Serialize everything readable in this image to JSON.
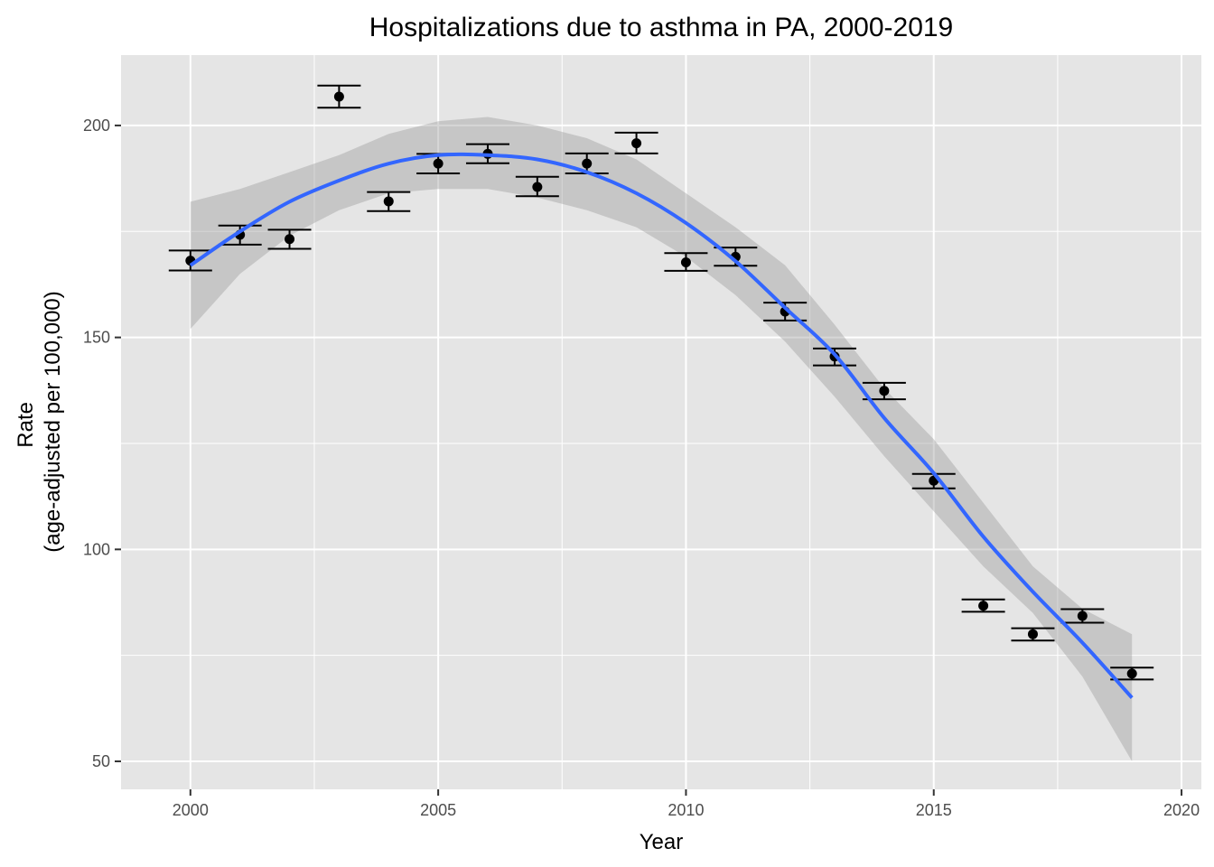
{
  "chart_data": {
    "type": "scatter",
    "title": "Hospitalizations due to asthma in PA, 2000-2019",
    "xlabel": "Year",
    "ylabel_lines": [
      "Rate",
      "(age-adjusted per 100,000)"
    ],
    "xlim": [
      1998.6,
      2020.4
    ],
    "ylim": [
      43.4,
      216.6
    ],
    "x_ticks": [
      2000,
      2005,
      2010,
      2015,
      2020
    ],
    "y_ticks": [
      50,
      100,
      150,
      200
    ],
    "grid": true,
    "legend": "none",
    "colors": {
      "panel_background": "#e5e5e5",
      "grid": "#ffffff",
      "points": "#000000",
      "smooth_line": "#3366ff",
      "confidence_band": "#999999"
    },
    "series": [
      {
        "x": [
          2000,
          2001,
          2002,
          2003,
          2004,
          2005,
          2006,
          2007,
          2008,
          2009,
          2010,
          2011,
          2012,
          2013,
          2014,
          2015,
          2016,
          2017,
          2018,
          2019
        ],
        "y": [
          168.1,
          174.2,
          173.2,
          206.8,
          182.1,
          191.0,
          193.3,
          185.5,
          191.0,
          195.8,
          167.7,
          169.0,
          156.1,
          145.5,
          137.4,
          116.2,
          86.7,
          80.0,
          84.3,
          70.7
        ],
        "err_low": [
          165.8,
          171.9,
          170.9,
          204.2,
          179.8,
          188.7,
          191.1,
          183.3,
          188.7,
          193.4,
          165.7,
          166.9,
          154.0,
          143.4,
          135.4,
          114.4,
          85.3,
          78.5,
          82.7,
          69.3
        ],
        "err_high": [
          170.5,
          176.4,
          175.4,
          209.4,
          184.3,
          193.3,
          195.6,
          187.9,
          193.4,
          198.3,
          169.9,
          171.2,
          158.2,
          147.4,
          139.3,
          117.8,
          88.2,
          81.4,
          85.9,
          72.1
        ]
      }
    ],
    "smooth": {
      "x": [
        2000,
        2001,
        2002,
        2003,
        2004,
        2005,
        2006,
        2007,
        2008,
        2009,
        2010,
        2011,
        2012,
        2013,
        2014,
        2015,
        2016,
        2017,
        2018,
        2019
      ],
      "y": [
        167,
        175,
        182,
        187,
        191,
        193,
        193,
        192,
        189,
        184,
        177,
        168,
        157,
        146,
        131,
        118,
        103,
        90,
        78,
        65
      ],
      "ci_low": [
        152,
        165,
        174,
        180,
        184,
        185,
        185,
        183,
        180,
        176,
        169,
        160,
        149,
        136,
        122,
        109,
        96,
        85,
        70,
        50
      ],
      "ci_high": [
        182,
        185,
        189,
        193,
        198,
        201,
        202,
        200,
        197,
        192,
        184,
        176,
        167,
        153,
        138,
        126,
        111,
        96,
        86,
        80
      ]
    }
  }
}
